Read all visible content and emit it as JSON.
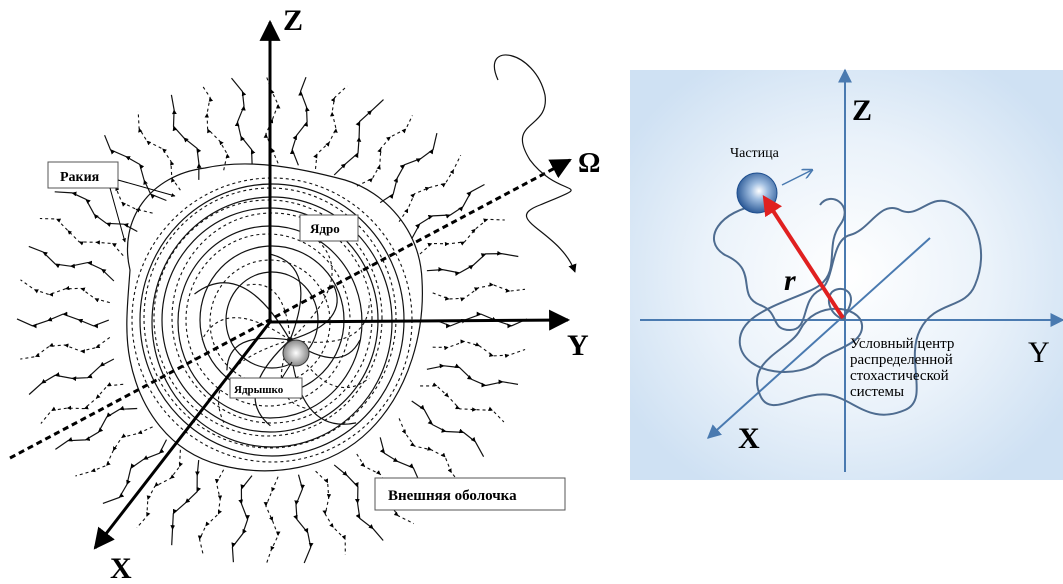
{
  "left_diagram": {
    "axis_z": "Z",
    "axis_y": "Y",
    "axis_x": "X",
    "axis_omega": "Ω",
    "label_rakiya": "Ракия",
    "label_yadro": "Ядро",
    "label_yadryshko": "Ядрышко",
    "label_outer_shell": "Внешняя оболочка"
  },
  "right_diagram": {
    "axis_z": "Z",
    "axis_y": "Y",
    "axis_x": "X",
    "label_particle": "Частица",
    "label_radius": "r",
    "center_label_lines": [
      "Условный центр",
      "распределенной",
      "стохастической",
      "системы"
    ],
    "particle_color": "#2d5d9e",
    "vector_color": "#e02020",
    "axis_color": "#4a7ab0",
    "trajectory_color": "#4e6c90",
    "background_glow": "#d8e8f6"
  }
}
